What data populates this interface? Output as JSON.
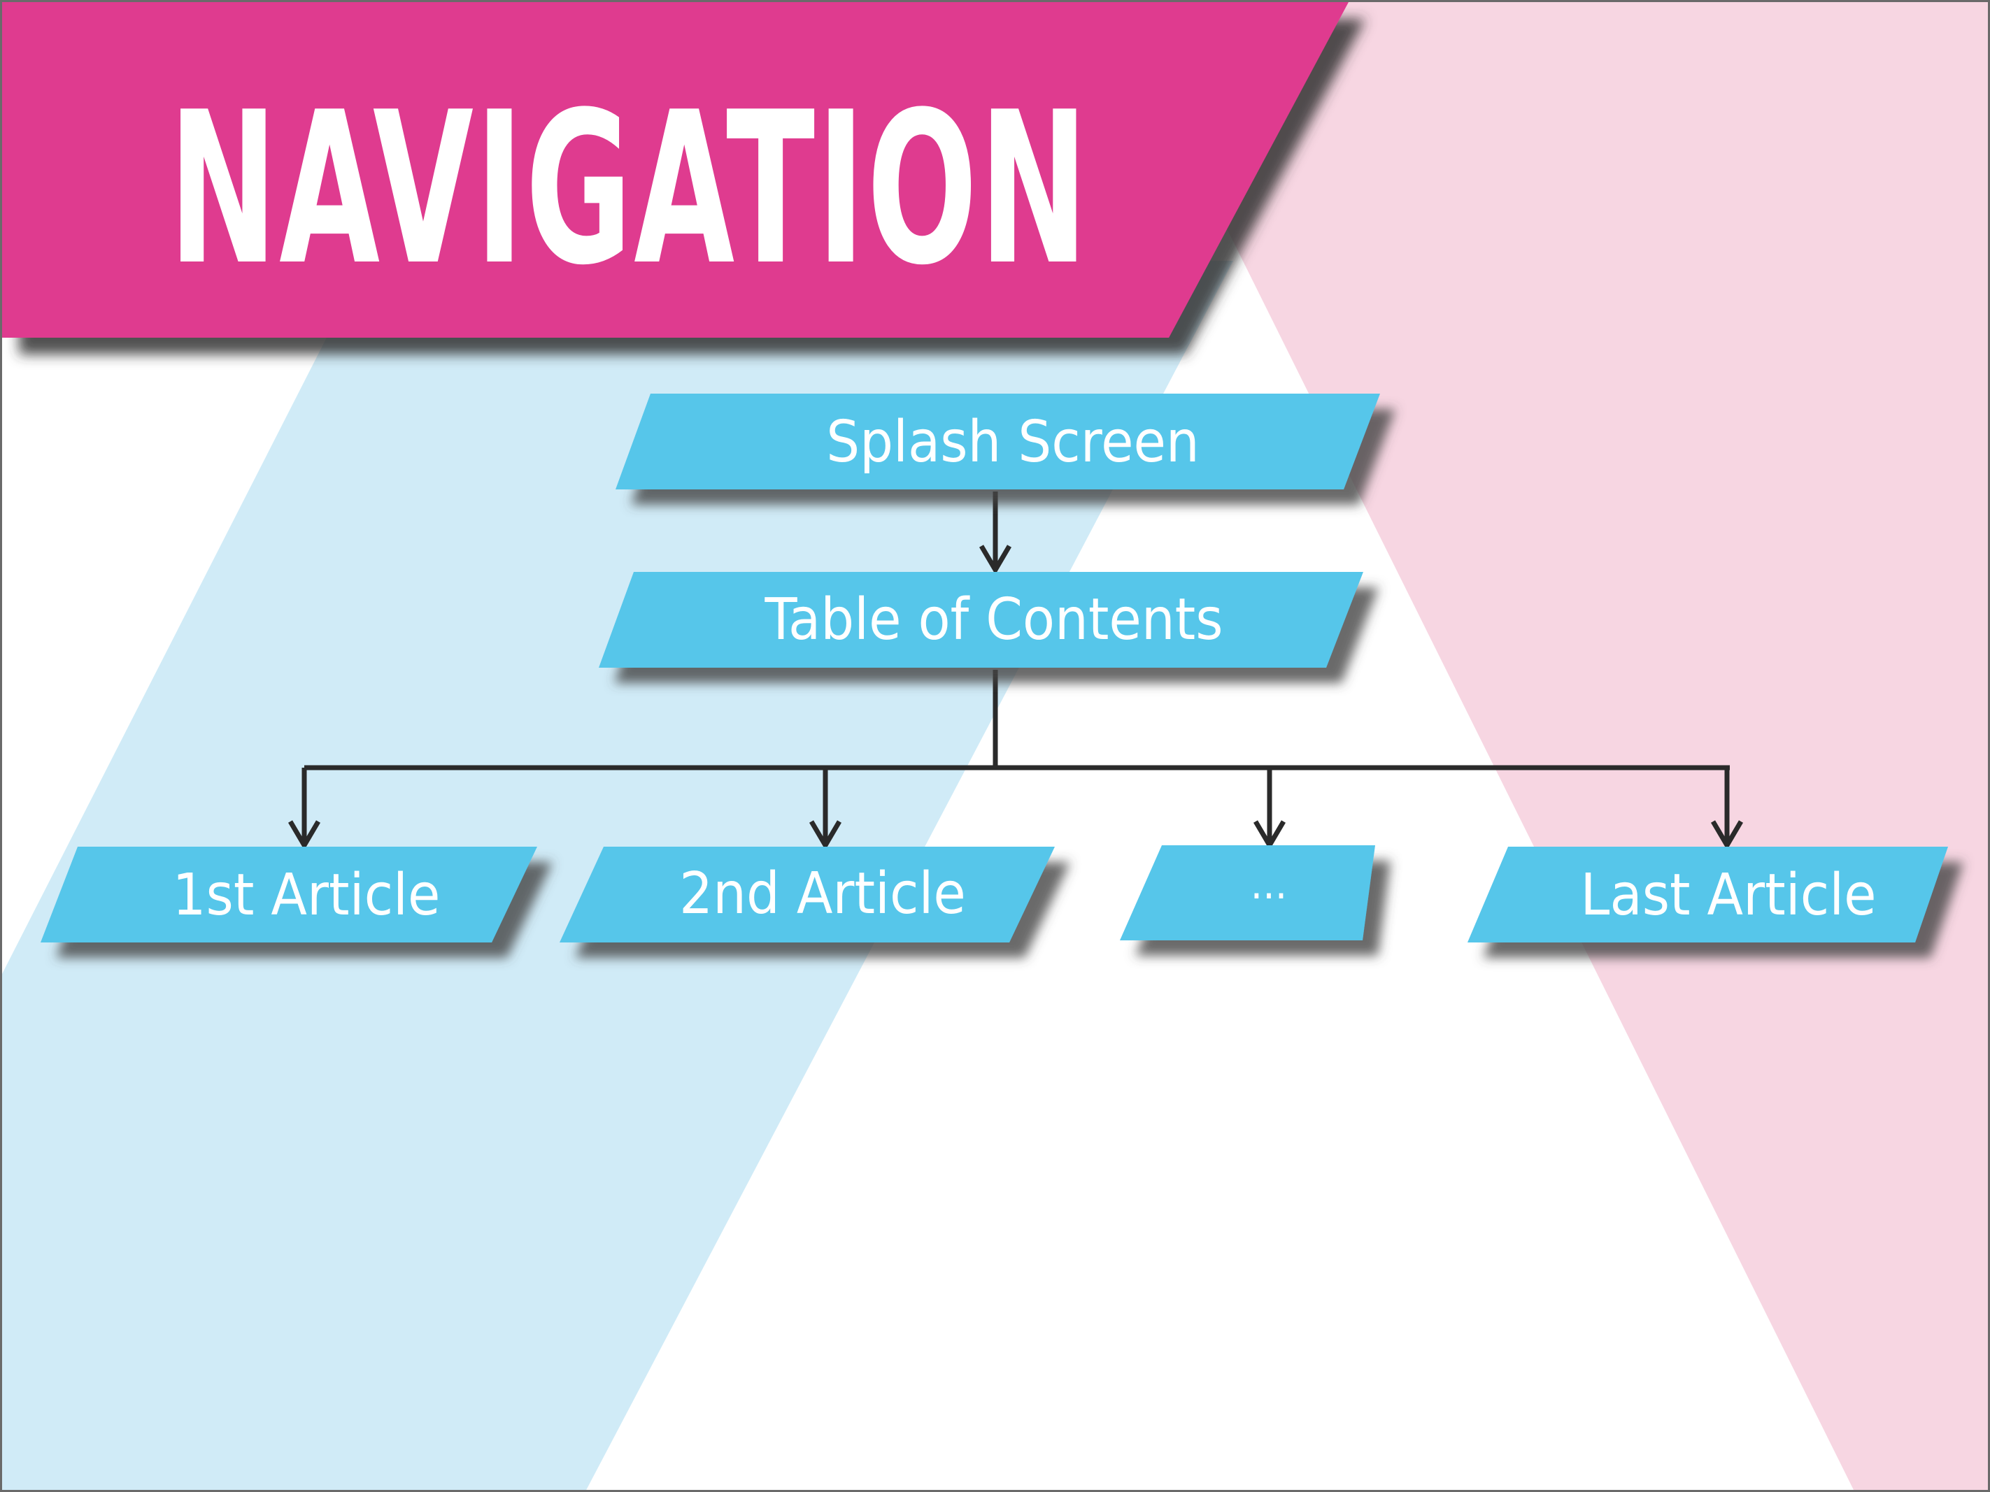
{
  "title": "NAVIGATION",
  "colors": {
    "title_banner": "#df3a8f",
    "pink_band": "#f7d6e2",
    "blue_band": "#d0ebf7",
    "node_fill": "#56c6ea",
    "node_shadow": "#5a5a5a",
    "node_text": "#ffffff",
    "connector": "#2a2a2a"
  },
  "nodes": {
    "splash": {
      "label": "Splash Screen"
    },
    "toc": {
      "label": "Table of Contents"
    },
    "article1": {
      "label": "1st Article"
    },
    "article2": {
      "label": "2nd Article"
    },
    "ellipsis": {
      "label": "..."
    },
    "last": {
      "label": "Last Article"
    }
  },
  "edges": [
    {
      "from": "splash",
      "to": "toc"
    },
    {
      "from": "toc",
      "to": "article1"
    },
    {
      "from": "toc",
      "to": "article2"
    },
    {
      "from": "toc",
      "to": "ellipsis"
    },
    {
      "from": "toc",
      "to": "last"
    }
  ]
}
